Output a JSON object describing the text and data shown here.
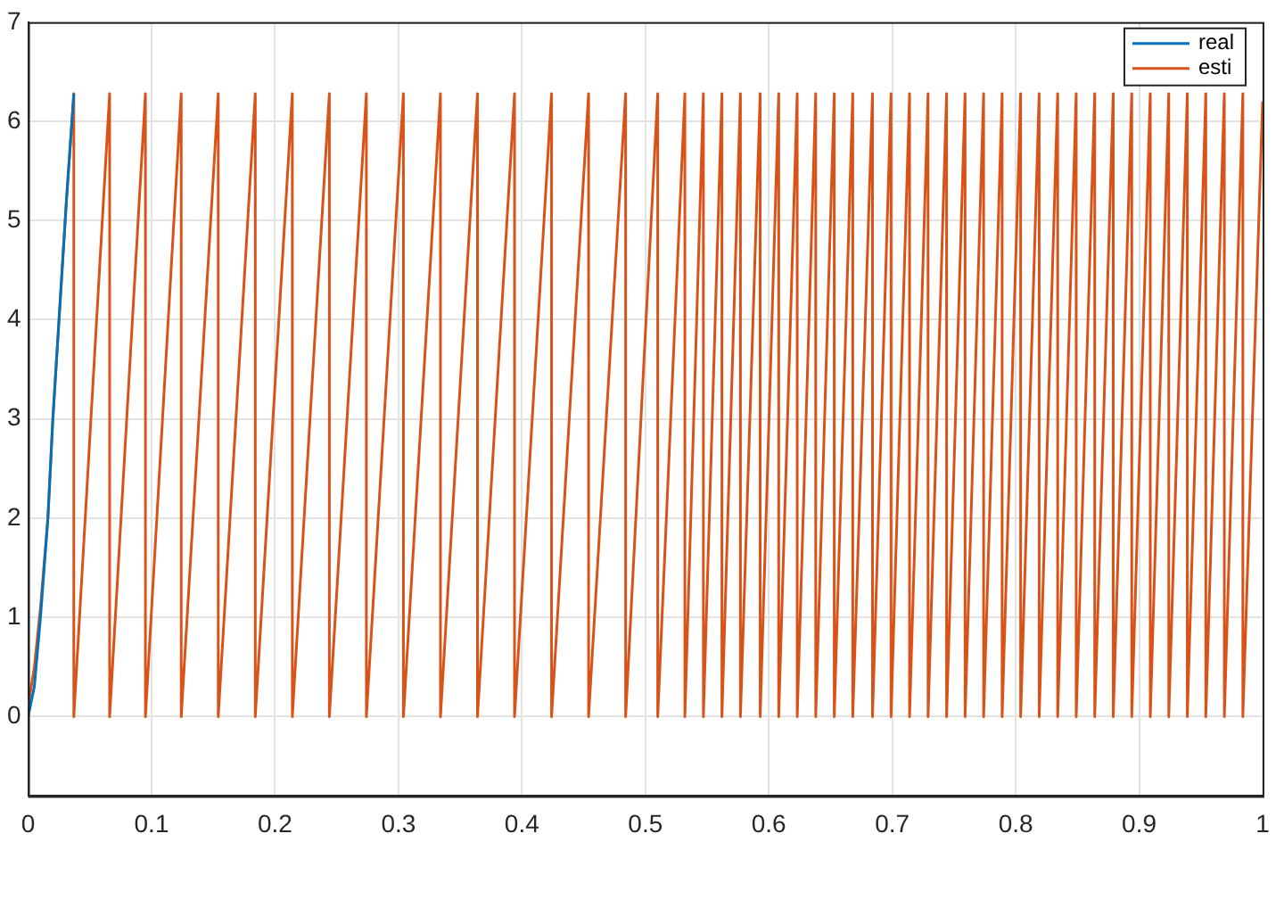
{
  "chart_data": {
    "type": "line",
    "xlim": [
      0,
      1
    ],
    "xticks": [
      0,
      0.1,
      0.2,
      0.3,
      0.4,
      0.5,
      0.6,
      0.7,
      0.8,
      0.9,
      1
    ],
    "ylim": [
      -0.8,
      7
    ],
    "yticks": [
      0,
      1,
      2,
      3,
      4,
      5,
      6,
      7
    ],
    "grid": true,
    "legend": "top right",
    "marker": "none",
    "line_style": "solid",
    "series": [
      {
        "name": "real",
        "color": "#0072bd",
        "x": [
          0,
          0.005,
          0.01,
          0.016,
          0.02,
          0.025,
          0.031,
          0.037
        ],
        "values": [
          0,
          0.3,
          1,
          2,
          3,
          4,
          5.2,
          6.28
        ]
      },
      {
        "name": "esti",
        "color": "#d95319",
        "x": [
          0,
          0.005,
          0.01,
          0.016,
          0.02,
          0.025,
          0.031,
          0.037,
          0.037,
          0.066,
          0.066,
          0.095,
          0.095,
          0.124,
          0.124,
          0.154,
          0.154,
          0.184,
          0.184,
          0.214,
          0.214,
          0.244,
          0.244,
          0.274,
          0.274,
          0.304,
          0.304,
          0.334,
          0.334,
          0.364,
          0.364,
          0.394,
          0.394,
          0.424,
          0.424,
          0.454,
          0.454,
          0.484,
          0.484,
          0.51,
          0.51,
          0.532,
          0.532,
          0.547,
          0.547,
          0.562,
          0.562,
          0.577,
          0.577,
          0.593,
          0.593,
          0.608,
          0.608,
          0.623,
          0.623,
          0.638,
          0.638,
          0.653,
          0.653,
          0.668,
          0.668,
          0.684,
          0.684,
          0.699,
          0.699,
          0.714,
          0.714,
          0.729,
          0.729,
          0.744,
          0.744,
          0.759,
          0.759,
          0.774,
          0.774,
          0.789,
          0.789,
          0.804,
          0.804,
          0.819,
          0.819,
          0.834,
          0.834,
          0.849,
          0.849,
          0.864,
          0.864,
          0.879,
          0.879,
          0.894,
          0.894,
          0.909,
          0.909,
          0.924,
          0.924,
          0.939,
          0.939,
          0.954,
          0.954,
          0.969,
          0.969,
          0.984,
          0.984,
          1
        ],
        "values": [
          0.1,
          0.5,
          1.1,
          2,
          3,
          4,
          5.2,
          6.28,
          0,
          6.28,
          0,
          6.28,
          0,
          6.28,
          0,
          6.28,
          0,
          6.28,
          0,
          6.28,
          0,
          6.28,
          0,
          6.28,
          0,
          6.28,
          0,
          6.28,
          0,
          6.28,
          0,
          6.28,
          0,
          6.28,
          0,
          6.28,
          0,
          6.28,
          0,
          6.28,
          0,
          6.28,
          0,
          6.28,
          0,
          6.28,
          0,
          6.28,
          0,
          6.28,
          0,
          6.28,
          0,
          6.28,
          0,
          6.28,
          0,
          6.28,
          0,
          6.28,
          0,
          6.28,
          0,
          6.28,
          0,
          6.28,
          0,
          6.28,
          0,
          6.28,
          0,
          6.28,
          0,
          6.28,
          0,
          6.28,
          0,
          6.28,
          0,
          6.28,
          0,
          6.28,
          0,
          6.28,
          0,
          6.28,
          0,
          6.28,
          0,
          6.28,
          0,
          6.28,
          0,
          6.28,
          0,
          6.28,
          0,
          6.28,
          0,
          6.28,
          0,
          6.28,
          0,
          6.2
        ]
      }
    ]
  }
}
